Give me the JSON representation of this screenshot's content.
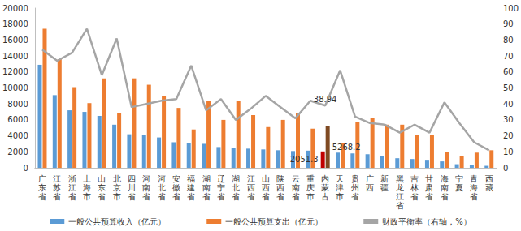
{
  "chart_data": {
    "type": "bar",
    "categories": [
      "广东省",
      "江苏省",
      "浙江省",
      "上海市",
      "山东省",
      "北京市",
      "四川省",
      "河南省",
      "河北省",
      "安徽省",
      "福建省",
      "湖南省",
      "辽宁省",
      "湖北省",
      "江西省",
      "山西省",
      "陕西省",
      "云南省",
      "重庆市",
      "内蒙古",
      "天津市",
      "贵州省",
      "广西",
      "新疆",
      "黑龙江省",
      "吉林省",
      "甘肃省",
      "海南省",
      "宁夏",
      "青海省",
      "西藏"
    ],
    "series": [
      {
        "name": "一般公共预算收入（亿元）",
        "type": "bar",
        "color": "#5b9bd5",
        "values": [
          12900,
          9100,
          7200,
          7000,
          6500,
          5400,
          4200,
          4100,
          3800,
          3200,
          3100,
          3000,
          2600,
          2500,
          2400,
          2300,
          2200,
          2100,
          2150,
          2051.3,
          1900,
          1800,
          1700,
          1500,
          1200,
          1100,
          900,
          800,
          450,
          350,
          250
        ]
      },
      {
        "name": "一般公共预算支出（亿元）",
        "type": "bar",
        "color": "#ed7d31",
        "values": [
          17400,
          13600,
          10100,
          8100,
          11200,
          6800,
          11200,
          10400,
          9000,
          7500,
          4800,
          8400,
          6000,
          8400,
          6600,
          5100,
          6000,
          6900,
          4900,
          5268.2,
          3100,
          5700,
          6200,
          5400,
          5400,
          4100,
          4100,
          2000,
          1500,
          1900,
          2200
        ]
      },
      {
        "name": "财政平衡率（右轴，%）",
        "type": "line",
        "axis": "y2",
        "color": "#a5a5a5",
        "values": [
          74,
          67,
          72,
          87,
          58,
          81,
          38,
          40,
          42,
          43,
          64,
          36,
          43,
          30,
          37,
          45,
          38,
          31,
          42,
          38.94,
          61,
          32,
          28,
          27,
          22,
          27,
          22,
          41,
          28,
          16,
          11
        ]
      }
    ],
    "annotations": [
      {
        "category": "内蒙古",
        "series": "一般公共预算收入（亿元）",
        "text": "2051.3",
        "color": "#c00000"
      },
      {
        "category": "内蒙古",
        "series": "一般公共预算支出（亿元）",
        "text": "5268.2",
        "color": "#7f4a22"
      },
      {
        "category": "内蒙古",
        "series": "财政平衡率（右轴，%）",
        "text": "38.94"
      }
    ],
    "ylim": [
      0,
      20000
    ],
    "yticks": [
      0,
      2000,
      4000,
      6000,
      8000,
      10000,
      12000,
      14000,
      16000,
      18000,
      20000
    ],
    "y2lim": [
      0,
      100
    ],
    "y2ticks": [
      0,
      10,
      20,
      30,
      40,
      50,
      60,
      70,
      80,
      90,
      100
    ],
    "grid": false,
    "legend": "bottom"
  }
}
